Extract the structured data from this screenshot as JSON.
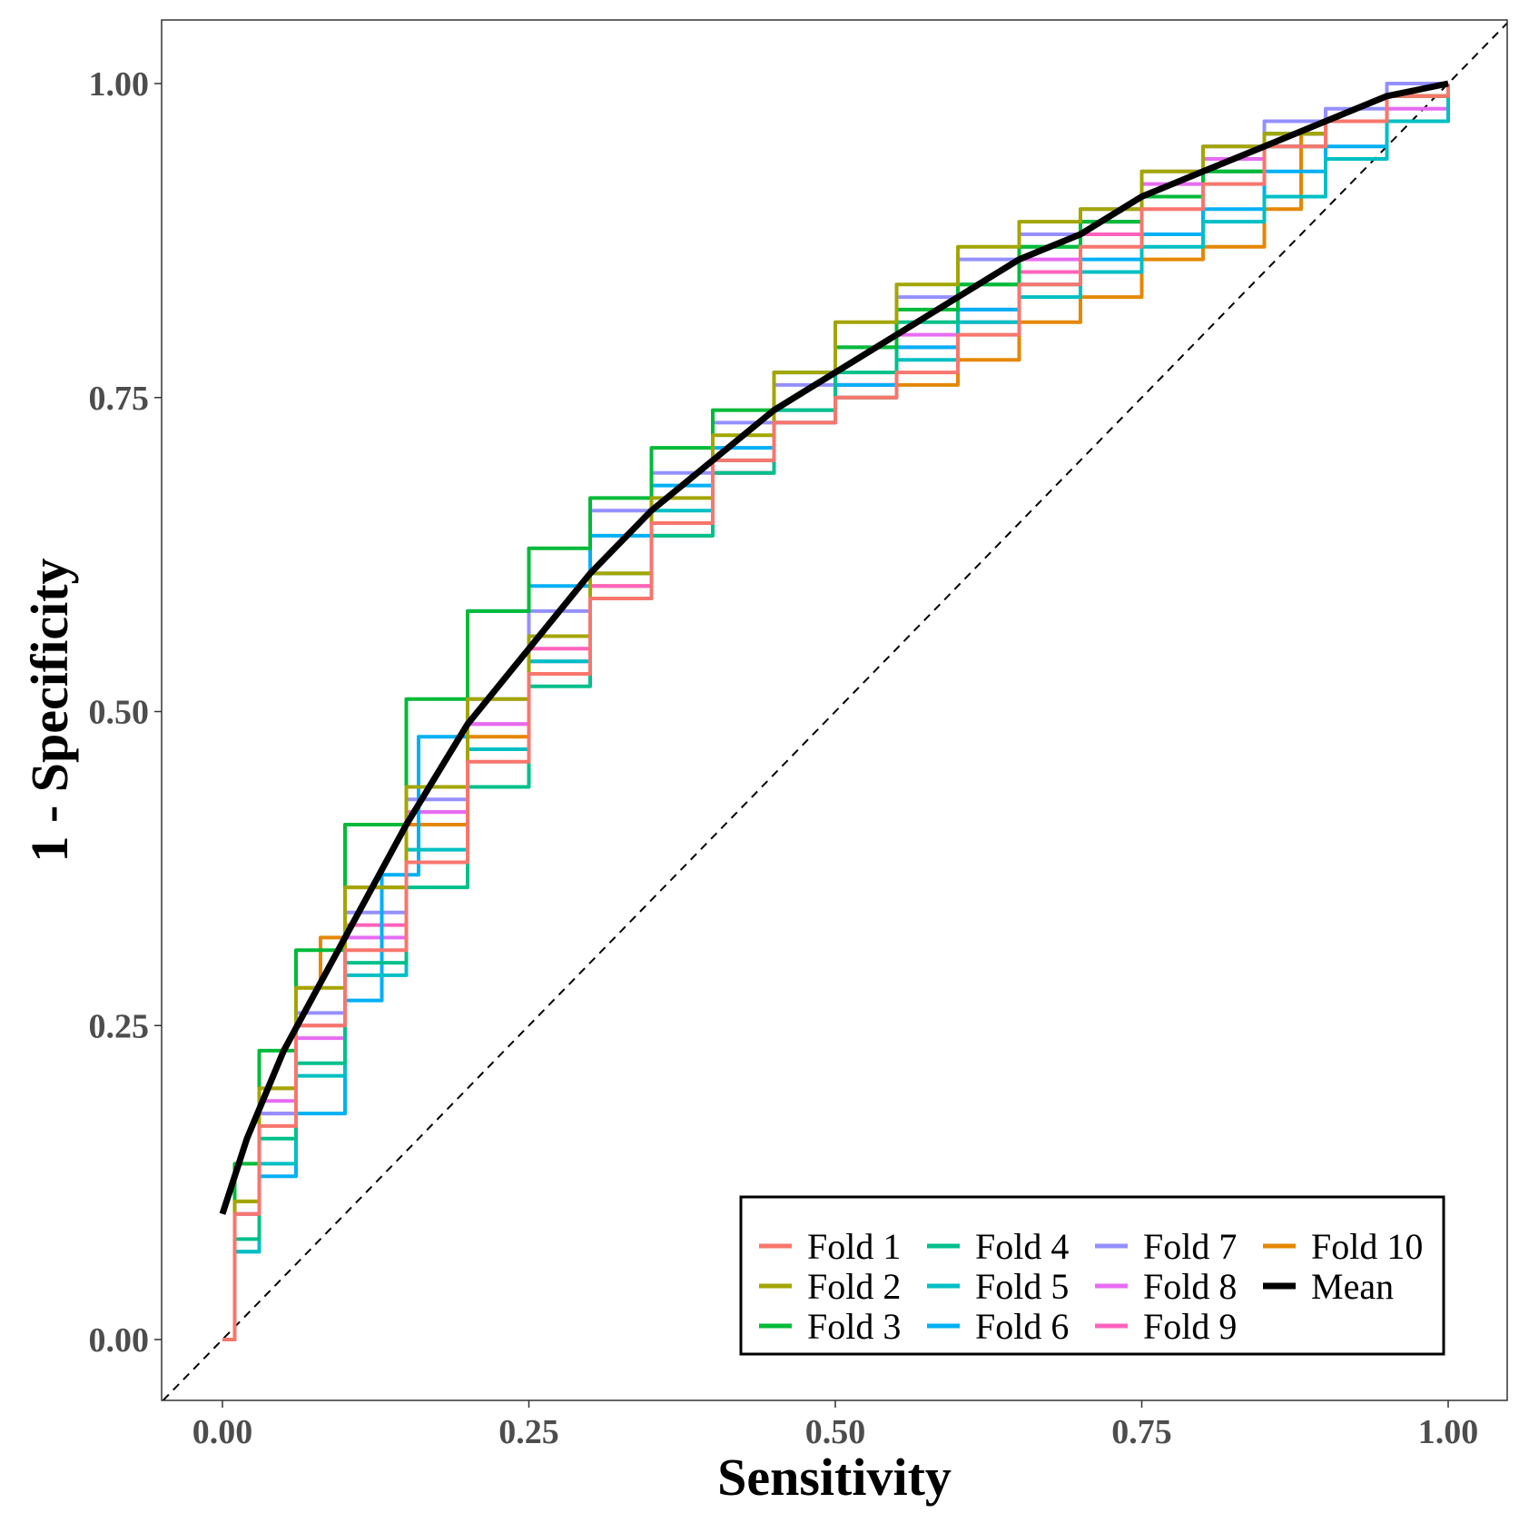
{
  "chart_data": {
    "type": "line",
    "title": "",
    "xlabel": "Sensitivity",
    "ylabel": "1 - Specificity",
    "xlim": [
      0,
      1
    ],
    "ylim": [
      0,
      1
    ],
    "x_ticks": [
      "0.00",
      "0.25",
      "0.50",
      "0.75",
      "1.00"
    ],
    "y_ticks": [
      "0.00",
      "0.25",
      "0.50",
      "0.75",
      "1.00"
    ],
    "grid": false,
    "reference_line": "diagonal dashed",
    "legend_position": "bottom-right",
    "series": [
      {
        "name": "Fold 1",
        "color": "#F8766D",
        "x": [
          0.0,
          0.01,
          0.03,
          0.06,
          0.1,
          0.15,
          0.2,
          0.25,
          0.3,
          0.35,
          0.4,
          0.45,
          0.5,
          0.55,
          0.6,
          0.65,
          0.7,
          0.75,
          0.8,
          0.85,
          0.9,
          0.95,
          1.0
        ],
        "y": [
          0.0,
          0.1,
          0.17,
          0.25,
          0.31,
          0.38,
          0.46,
          0.53,
          0.59,
          0.65,
          0.7,
          0.73,
          0.75,
          0.77,
          0.8,
          0.84,
          0.87,
          0.9,
          0.92,
          0.95,
          0.97,
          0.99,
          1.0
        ]
      },
      {
        "name": "Fold 2",
        "color": "#A3A500",
        "x": [
          0.0,
          0.01,
          0.03,
          0.06,
          0.1,
          0.15,
          0.2,
          0.25,
          0.3,
          0.35,
          0.4,
          0.45,
          0.5,
          0.55,
          0.6,
          0.65,
          0.7,
          0.75,
          0.8,
          0.85,
          0.9,
          0.95,
          1.0
        ],
        "y": [
          0.0,
          0.11,
          0.2,
          0.28,
          0.36,
          0.44,
          0.51,
          0.56,
          0.61,
          0.67,
          0.72,
          0.77,
          0.81,
          0.84,
          0.87,
          0.89,
          0.9,
          0.93,
          0.95,
          0.96,
          0.97,
          0.99,
          1.0
        ]
      },
      {
        "name": "Fold 3",
        "color": "#00BA38",
        "x": [
          0.0,
          0.01,
          0.03,
          0.06,
          0.1,
          0.15,
          0.2,
          0.25,
          0.3,
          0.35,
          0.4,
          0.45,
          0.5,
          0.55,
          0.6,
          0.65,
          0.7,
          0.75,
          0.8,
          0.85,
          0.9,
          0.95,
          1.0
        ],
        "y": [
          0.0,
          0.14,
          0.23,
          0.31,
          0.41,
          0.51,
          0.58,
          0.63,
          0.67,
          0.71,
          0.74,
          0.77,
          0.79,
          0.82,
          0.84,
          0.87,
          0.89,
          0.91,
          0.93,
          0.96,
          0.97,
          0.99,
          1.0
        ]
      },
      {
        "name": "Fold 4",
        "color": "#00C08B",
        "x": [
          0.0,
          0.01,
          0.03,
          0.06,
          0.1,
          0.15,
          0.2,
          0.25,
          0.3,
          0.35,
          0.4,
          0.45,
          0.5,
          0.55,
          0.6,
          0.65,
          0.7,
          0.75,
          0.8,
          0.85,
          0.9,
          0.95,
          1.0
        ],
        "y": [
          0.0,
          0.08,
          0.16,
          0.22,
          0.3,
          0.36,
          0.44,
          0.52,
          0.59,
          0.64,
          0.69,
          0.74,
          0.77,
          0.81,
          0.84,
          0.87,
          0.89,
          0.91,
          0.93,
          0.95,
          0.97,
          0.99,
          1.0
        ]
      },
      {
        "name": "Fold 5",
        "color": "#00BFC4",
        "x": [
          0.0,
          0.01,
          0.03,
          0.06,
          0.1,
          0.15,
          0.2,
          0.25,
          0.3,
          0.35,
          0.4,
          0.45,
          0.5,
          0.55,
          0.6,
          0.65,
          0.7,
          0.75,
          0.8,
          0.85,
          0.9,
          0.95,
          1.0
        ],
        "y": [
          0.0,
          0.07,
          0.14,
          0.21,
          0.29,
          0.39,
          0.47,
          0.54,
          0.61,
          0.66,
          0.7,
          0.73,
          0.75,
          0.78,
          0.81,
          0.83,
          0.85,
          0.87,
          0.89,
          0.91,
          0.94,
          0.97,
          1.0
        ]
      },
      {
        "name": "Fold 6",
        "color": "#00B0F6",
        "x": [
          0.0,
          0.01,
          0.03,
          0.06,
          0.1,
          0.13,
          0.16,
          0.2,
          0.25,
          0.3,
          0.35,
          0.4,
          0.45,
          0.5,
          0.55,
          0.6,
          0.65,
          0.7,
          0.75,
          0.8,
          0.85,
          0.9,
          0.95,
          1.0
        ],
        "y": [
          0.0,
          0.07,
          0.13,
          0.18,
          0.27,
          0.37,
          0.48,
          0.58,
          0.6,
          0.64,
          0.68,
          0.71,
          0.74,
          0.76,
          0.79,
          0.82,
          0.84,
          0.86,
          0.88,
          0.9,
          0.93,
          0.95,
          0.97,
          1.0
        ]
      },
      {
        "name": "Fold 7",
        "color": "#9590FF",
        "x": [
          0.0,
          0.01,
          0.03,
          0.06,
          0.1,
          0.15,
          0.2,
          0.25,
          0.3,
          0.35,
          0.4,
          0.45,
          0.5,
          0.55,
          0.6,
          0.65,
          0.7,
          0.75,
          0.8,
          0.85,
          0.9,
          0.95,
          1.0
        ],
        "y": [
          0.0,
          0.1,
          0.18,
          0.26,
          0.34,
          0.43,
          0.51,
          0.58,
          0.66,
          0.69,
          0.73,
          0.76,
          0.79,
          0.83,
          0.86,
          0.88,
          0.9,
          0.93,
          0.95,
          0.97,
          0.98,
          1.0,
          1.0
        ]
      },
      {
        "name": "Fold 8",
        "color": "#E76BF3",
        "x": [
          0.0,
          0.01,
          0.03,
          0.06,
          0.1,
          0.15,
          0.2,
          0.25,
          0.3,
          0.35,
          0.4,
          0.45,
          0.5,
          0.55,
          0.6,
          0.65,
          0.7,
          0.75,
          0.8,
          0.85,
          0.9,
          0.95,
          1.0
        ],
        "y": [
          0.0,
          0.1,
          0.19,
          0.24,
          0.32,
          0.42,
          0.49,
          0.54,
          0.59,
          0.65,
          0.69,
          0.73,
          0.76,
          0.8,
          0.82,
          0.86,
          0.89,
          0.92,
          0.94,
          0.96,
          0.97,
          0.98,
          0.99
        ]
      },
      {
        "name": "Fold 9",
        "color": "#FF62BC",
        "x": [
          0.0,
          0.01,
          0.03,
          0.06,
          0.1,
          0.15,
          0.2,
          0.25,
          0.3,
          0.35,
          0.4,
          0.45,
          0.5,
          0.55,
          0.6,
          0.65,
          0.7,
          0.75,
          0.8,
          0.85,
          0.9,
          0.95,
          1.0
        ],
        "y": [
          0.0,
          0.1,
          0.18,
          0.25,
          0.33,
          0.42,
          0.49,
          0.55,
          0.6,
          0.65,
          0.69,
          0.73,
          0.76,
          0.79,
          0.81,
          0.85,
          0.88,
          0.91,
          0.93,
          0.95,
          0.97,
          0.99,
          1.0
        ]
      },
      {
        "name": "Fold 10",
        "color": "#E58700",
        "x": [
          0.0,
          0.01,
          0.03,
          0.06,
          0.08,
          0.1,
          0.15,
          0.2,
          0.25,
          0.3,
          0.35,
          0.4,
          0.45,
          0.5,
          0.55,
          0.6,
          0.65,
          0.7,
          0.75,
          0.8,
          0.85,
          0.88,
          0.9,
          0.95,
          1.0
        ],
        "y": [
          0.0,
          0.11,
          0.2,
          0.28,
          0.32,
          0.36,
          0.41,
          0.48,
          0.56,
          0.6,
          0.64,
          0.69,
          0.73,
          0.75,
          0.76,
          0.78,
          0.81,
          0.83,
          0.86,
          0.87,
          0.9,
          0.96,
          0.97,
          0.99,
          1.0
        ]
      },
      {
        "name": "Mean",
        "color": "#000000",
        "x": [
          0.0,
          0.02,
          0.05,
          0.1,
          0.15,
          0.2,
          0.25,
          0.3,
          0.35,
          0.4,
          0.45,
          0.5,
          0.55,
          0.6,
          0.65,
          0.7,
          0.75,
          0.8,
          0.85,
          0.9,
          0.95,
          1.0
        ],
        "y": [
          0.1,
          0.16,
          0.23,
          0.32,
          0.41,
          0.49,
          0.55,
          0.61,
          0.66,
          0.7,
          0.74,
          0.77,
          0.8,
          0.83,
          0.86,
          0.88,
          0.91,
          0.93,
          0.95,
          0.97,
          0.99,
          1.0
        ]
      }
    ]
  }
}
